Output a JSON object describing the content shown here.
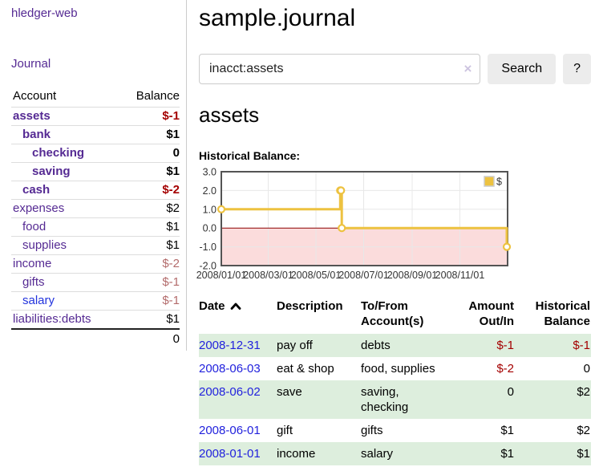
{
  "app": {
    "title": "hledger-web"
  },
  "colors": {
    "accent_purple": "#552a93",
    "link_blue": "#2222dd",
    "negative_red": "#a40000",
    "faded_negative": "#b36b6b",
    "stripe_green": "#ddeedd",
    "series_gold": "#edc240",
    "negative_region": "#fbdcdc",
    "zero_line": "#8b0000",
    "grid_line": "#e8e8e8",
    "chart_border": "#545454"
  },
  "sidebar": {
    "nav_journal_label": "Journal",
    "accounts": {
      "header_account": "Account",
      "header_balance": "Balance",
      "rows": [
        {
          "name": "assets",
          "depth": 1,
          "balance": "$-1",
          "bold": true,
          "balance_color": "negative"
        },
        {
          "name": "bank",
          "depth": 2,
          "balance": "$1",
          "bold": true,
          "balance_color": ""
        },
        {
          "name": "checking",
          "depth": 3,
          "balance": "0",
          "bold": true,
          "balance_color": ""
        },
        {
          "name": "saving",
          "depth": 3,
          "balance": "$1",
          "bold": true,
          "balance_color": ""
        },
        {
          "name": "cash",
          "depth": 2,
          "balance": "$-2",
          "bold": true,
          "balance_color": "negative"
        },
        {
          "name": "expenses",
          "depth": 1,
          "balance": "$2",
          "bold": false,
          "balance_color": ""
        },
        {
          "name": "food",
          "depth": 2,
          "balance": "$1",
          "bold": false,
          "balance_color": ""
        },
        {
          "name": "supplies",
          "depth": 2,
          "balance": "$1",
          "bold": false,
          "balance_color": ""
        },
        {
          "name": "income",
          "depth": 1,
          "balance": "$-2",
          "bold": false,
          "balance_color": "faded-negative"
        },
        {
          "name": "gifts",
          "depth": 2,
          "balance": "$-1",
          "bold": false,
          "balance_color": "faded-negative"
        },
        {
          "name": "salary",
          "depth": 2,
          "balance": "$-1",
          "bold": false,
          "balance_color": "faded-negative",
          "link_color": "blue"
        },
        {
          "name": "liabilities:debts",
          "depth": 1,
          "balance": "$1",
          "bold": false,
          "balance_color": ""
        }
      ],
      "total": "0"
    }
  },
  "header": {
    "title": "sample.journal"
  },
  "search": {
    "value": "inacct:assets",
    "clear_icon": "×",
    "button_label": "Search",
    "help_label": "?"
  },
  "register": {
    "heading": "assets",
    "chart_label": "Historical Balance:"
  },
  "chart_data": {
    "type": "line",
    "title": "Historical Balance",
    "steps": true,
    "series": [
      {
        "name": "$",
        "points": [
          [
            "2008-01-01",
            1
          ],
          [
            "2008-06-01",
            2
          ],
          [
            "2008-06-02",
            2
          ],
          [
            "2008-06-03",
            0
          ],
          [
            "2008-12-31",
            -1
          ]
        ]
      }
    ],
    "x_range": [
      "2008-01-01",
      "2009-01-01"
    ],
    "x_ticks": [
      "2008/01/01",
      "2008/03/01",
      "2008/05/01",
      "2008/07/01",
      "2008/09/01",
      "2008/11/01"
    ],
    "y_ticks": [
      3.0,
      2.0,
      1.0,
      0.0,
      -1.0,
      -2.0
    ],
    "ylim": [
      -2,
      3
    ],
    "grid": true,
    "legend": {
      "label": "$",
      "position": "top-right"
    }
  },
  "transactions": {
    "headers": {
      "date": "Date",
      "description": "Description",
      "accounts": "To/From Account(s)",
      "amount": "Amount Out/In",
      "balance": "Historical Balance"
    },
    "rows": [
      {
        "date": "2008-12-31",
        "description": "pay off",
        "accounts": "debts",
        "amount": "$-1",
        "amount_negative": true,
        "balance": "$-1",
        "balance_negative": true
      },
      {
        "date": "2008-06-03",
        "description": "eat & shop",
        "accounts": "food, supplies",
        "amount": "$-2",
        "amount_negative": true,
        "balance": "0",
        "balance_negative": false
      },
      {
        "date": "2008-06-02",
        "description": "save",
        "accounts": "saving, checking",
        "amount": "0",
        "amount_negative": false,
        "balance": "$2",
        "balance_negative": false
      },
      {
        "date": "2008-06-01",
        "description": "gift",
        "accounts": "gifts",
        "amount": "$1",
        "amount_negative": false,
        "balance": "$2",
        "balance_negative": false
      },
      {
        "date": "2008-01-01",
        "description": "income",
        "accounts": "salary",
        "amount": "$1",
        "amount_negative": false,
        "balance": "$1",
        "balance_negative": false
      }
    ]
  }
}
